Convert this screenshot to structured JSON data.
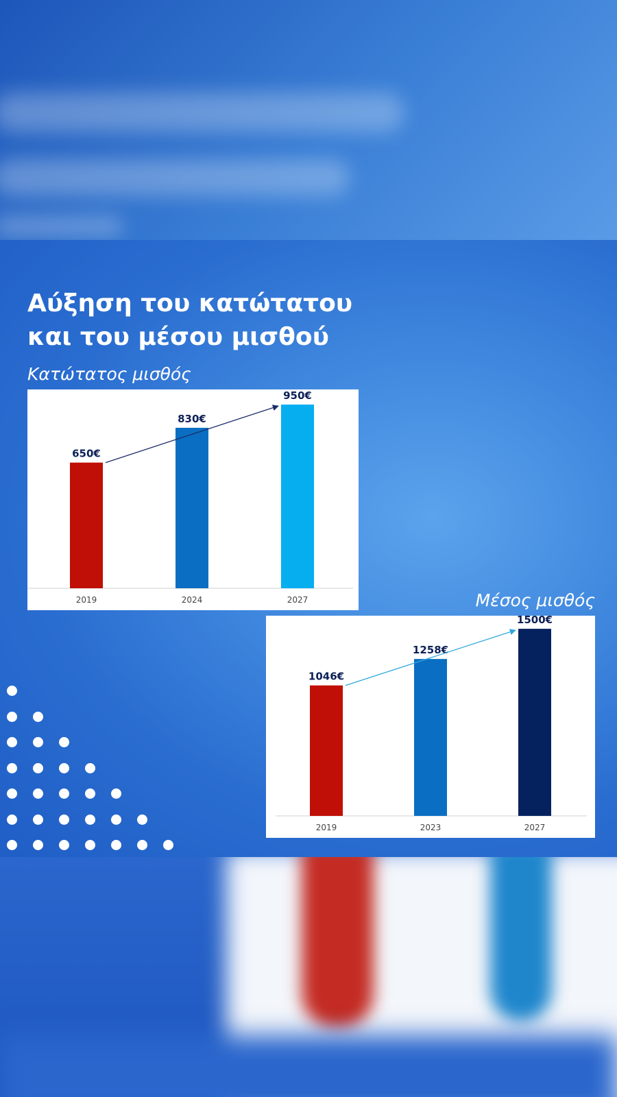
{
  "title_lines": [
    "Αύξηση του κατώτατου",
    "και του μέσου μισθού"
  ],
  "colors": {
    "red": "#c00f06",
    "blue": "#0a6fc2",
    "light_blue": "#06aef0",
    "navy": "#06225e",
    "arrow_navy": "#1b2d6b",
    "arrow_light": "#2fa7de",
    "label": "#0d2057",
    "tick": "#444444"
  },
  "chart_data": [
    {
      "type": "bar",
      "subtitle": "Κατώτατος μισθός",
      "categories": [
        "2019",
        "2024",
        "2027"
      ],
      "values": [
        650,
        830,
        950
      ],
      "value_labels": [
        "650€",
        "830€",
        "950€"
      ],
      "bar_colors": [
        "#c00f06",
        "#0a6fc2",
        "#06aef0"
      ],
      "arrow_color": "#1b2d6b",
      "ylim": [
        0,
        1000
      ],
      "grid": false
    },
    {
      "type": "bar",
      "subtitle": "Μέσος μισθός",
      "categories": [
        "2019",
        "2023",
        "2027"
      ],
      "values": [
        1046,
        1258,
        1500
      ],
      "value_labels": [
        "1046€",
        "1258€",
        "1500€"
      ],
      "bar_colors": [
        "#c00f06",
        "#0a6fc2",
        "#06225e"
      ],
      "arrow_color": "#2fa7de",
      "ylim": [
        0,
        1550
      ],
      "grid": false
    }
  ]
}
